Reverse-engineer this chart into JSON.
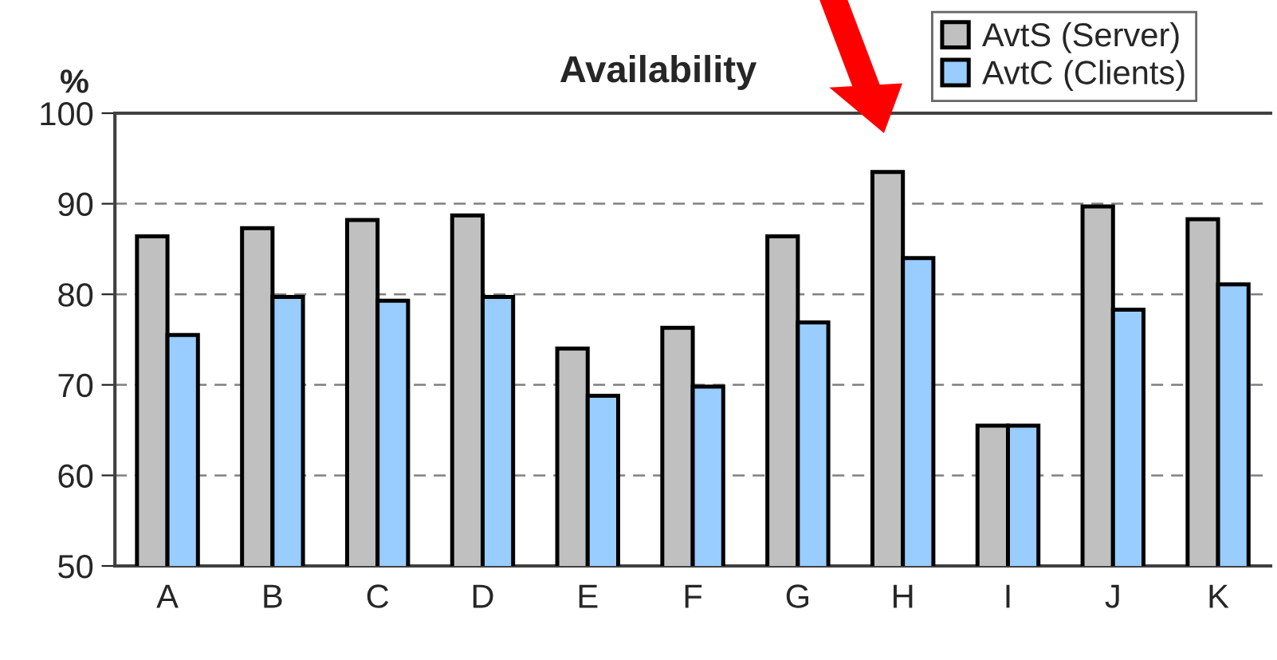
{
  "chart_data": {
    "type": "bar",
    "title": "Availability",
    "ylabel": "%",
    "categories": [
      "A",
      "B",
      "C",
      "D",
      "E",
      "F",
      "G",
      "H",
      "I",
      "J",
      "K"
    ],
    "series": [
      {
        "name": "AvtS (Server)",
        "color": "#c0c0c0",
        "values": [
          86.4,
          87.3,
          88.2,
          88.7,
          74.0,
          76.3,
          86.4,
          93.5,
          65.5,
          89.7,
          88.3
        ]
      },
      {
        "name": "AvtC (Clients)",
        "color": "#99ccff",
        "values": [
          75.5,
          79.7,
          79.3,
          79.7,
          68.8,
          69.8,
          76.9,
          84.0,
          65.5,
          78.3,
          81.1
        ]
      }
    ],
    "ylim": [
      50,
      100
    ],
    "yticks": [
      50,
      60,
      70,
      80,
      90,
      100
    ],
    "grid": "y",
    "legend": "top right"
  }
}
